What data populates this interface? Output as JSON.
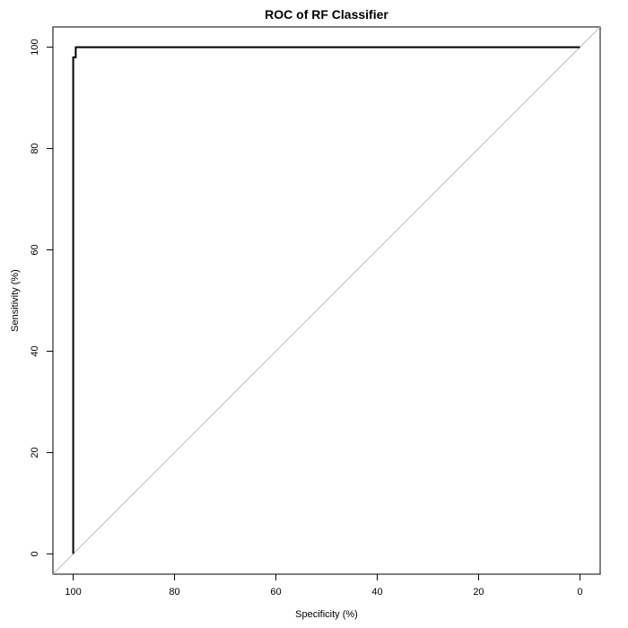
{
  "chart_data": {
    "type": "line",
    "title": "ROC of RF Classifier",
    "xlabel": "Specificity (%)",
    "ylabel": "Sensitivity (%)",
    "xlim": [
      104,
      -4
    ],
    "ylim": [
      -4,
      104
    ],
    "x_reversed": true,
    "grid": false,
    "x_ticks": [
      100,
      80,
      60,
      40,
      20,
      0
    ],
    "y_ticks": [
      0,
      20,
      40,
      60,
      80,
      100
    ],
    "series": [
      {
        "color": "#000000",
        "points": [
          [
            100,
            0
          ],
          [
            100,
            98
          ],
          [
            99.5,
            98
          ],
          [
            99.5,
            100
          ],
          [
            0,
            100
          ]
        ]
      }
    ],
    "reference_line": {
      "color": "#bebebe",
      "points": [
        [
          100,
          0
        ],
        [
          0,
          100
        ]
      ]
    }
  }
}
